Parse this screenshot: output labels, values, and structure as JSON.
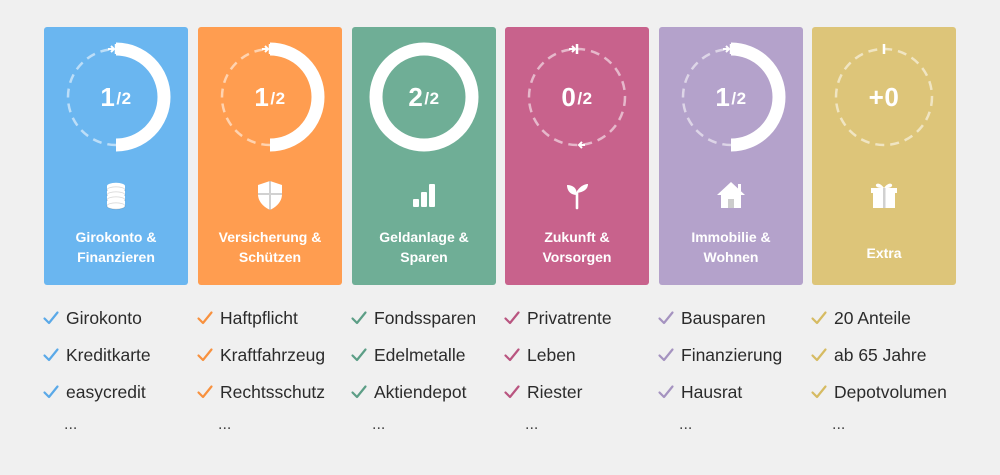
{
  "categories": [
    {
      "id": "girokonto",
      "color": "#6ab6f0",
      "check_color": "#5aa9e8",
      "progress": {
        "value": "1",
        "total": "2",
        "fraction": 0.5
      },
      "icon": "coins-icon",
      "label_lines": [
        "Girokonto &",
        "Finanzieren"
      ],
      "items": [
        "Girokonto",
        "Kreditkarte",
        "easycredit"
      ],
      "more": "..."
    },
    {
      "id": "versicherung",
      "color": "#ff9d50",
      "check_color": "#f8913e",
      "progress": {
        "value": "1",
        "total": "2",
        "fraction": 0.5
      },
      "icon": "shield-icon",
      "label_lines": [
        "Versicherung &",
        "Schützen"
      ],
      "items": [
        "Haftpflicht",
        "Kraftfahrzeug",
        "Rechtsschutz"
      ],
      "more": "..."
    },
    {
      "id": "geldanlage",
      "color": "#6fae96",
      "check_color": "#5c9e86",
      "progress": {
        "value": "2",
        "total": "2",
        "fraction": 1.0
      },
      "icon": "bar-chart-icon",
      "label_lines": [
        "Geldanlage &",
        "Sparen"
      ],
      "items": [
        "Fondssparen",
        "Edelmetalle",
        "Aktiendepot"
      ],
      "more": "..."
    },
    {
      "id": "zukunft",
      "color": "#c8628c",
      "check_color": "#b95580",
      "progress": {
        "value": "0",
        "total": "2",
        "fraction": 0.0
      },
      "icon": "sprout-icon",
      "label_lines": [
        "Zukunft &",
        "Vorsorgen"
      ],
      "items": [
        "Privatrente",
        "Leben",
        "Riester"
      ],
      "more": "..."
    },
    {
      "id": "immobilie",
      "color": "#b4a2cb",
      "check_color": "#a593c0",
      "progress": {
        "value": "1",
        "total": "2",
        "fraction": 0.5
      },
      "icon": "house-icon",
      "label_lines": [
        "Immobilie &",
        "Wohnen"
      ],
      "items": [
        "Bausparen",
        "Finanzierung",
        "Hausrat"
      ],
      "more": "..."
    },
    {
      "id": "extra",
      "color": "#ddc579",
      "check_color": "#d6bb62",
      "progress": {
        "value": "+0",
        "total": "",
        "fraction": 0.0
      },
      "icon": "gift-icon",
      "label_lines": [
        "Extra"
      ],
      "items": [
        "20 Anteile",
        "ab 65 Jahre",
        "Depotvolumen"
      ],
      "more": "..."
    }
  ]
}
